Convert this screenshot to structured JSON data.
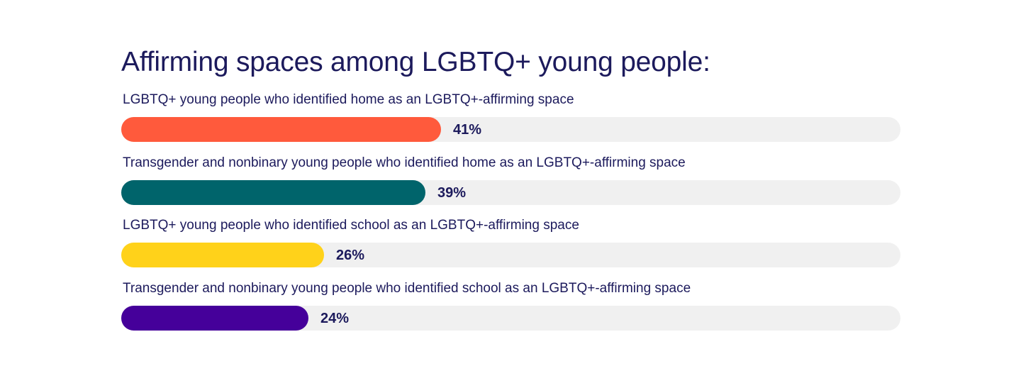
{
  "chart_data": {
    "type": "bar",
    "orientation": "horizontal",
    "title": "Affirming spaces among LGBTQ+ young people:",
    "xlim": [
      0,
      100
    ],
    "grid": false,
    "legend": "none",
    "categories": [
      "LGBTQ+ young people who identified home as an LGBTQ+-affirming space",
      "Transgender and nonbinary young people who identified home as an LGBTQ+-affirming space",
      "LGBTQ+ young people who identified school as an LGBTQ+-affirming space",
      "Transgender and nonbinary young people who identified school as an LGBTQ+-affirming space"
    ],
    "values": [
      41,
      39,
      26,
      24
    ],
    "data_labels": [
      "41%",
      "39%",
      "26%",
      "24%"
    ],
    "colors": [
      "#ff5a3c",
      "#00646b",
      "#ffd21a",
      "#45009a"
    ],
    "track_color": "#f0f0f0"
  }
}
